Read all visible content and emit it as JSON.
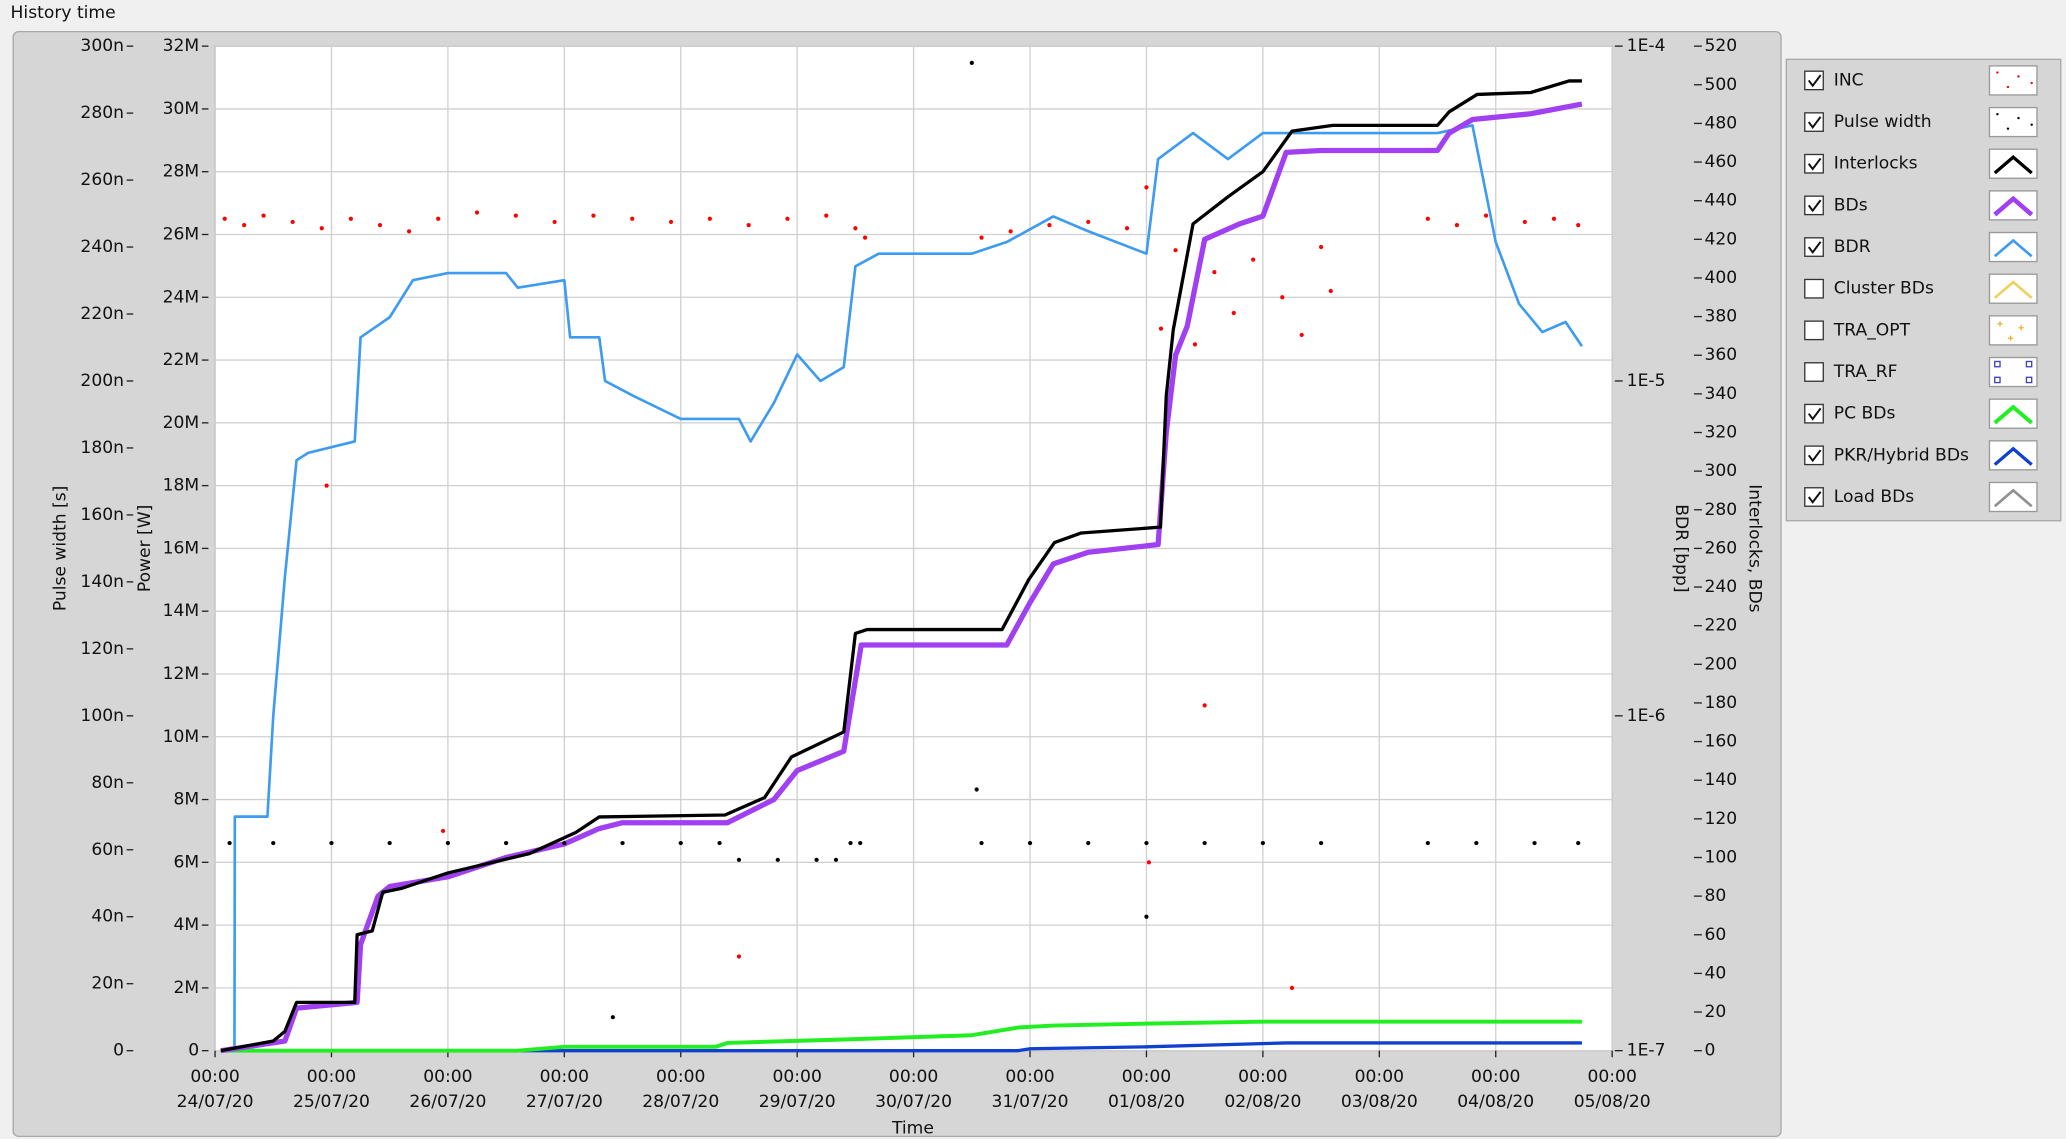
{
  "chart_data": {
    "type": "line",
    "title": "History time",
    "xlabel": "Time",
    "xlim": [
      "24/07/20 00:00",
      "05/08/20 00:00"
    ],
    "xticks": [
      {
        "value": "24/07/20 00:00",
        "label": [
          "00:00",
          "24/07/20"
        ]
      },
      {
        "value": "25/07/20 00:00",
        "label": [
          "00:00",
          "25/07/20"
        ]
      },
      {
        "value": "26/07/20 00:00",
        "label": [
          "00:00",
          "26/07/20"
        ]
      },
      {
        "value": "27/07/20 00:00",
        "label": [
          "00:00",
          "27/07/20"
        ]
      },
      {
        "value": "28/07/20 00:00",
        "label": [
          "00:00",
          "28/07/20"
        ]
      },
      {
        "value": "29/07/20 00:00",
        "label": [
          "00:00",
          "29/07/20"
        ]
      },
      {
        "value": "30/07/20 00:00",
        "label": [
          "00:00",
          "30/07/20"
        ]
      },
      {
        "value": "31/07/20 00:00",
        "label": [
          "00:00",
          "31/07/20"
        ]
      },
      {
        "value": "01/08/20 00:00",
        "label": [
          "00:00",
          "01/08/20"
        ]
      },
      {
        "value": "02/08/20 00:00",
        "label": [
          "00:00",
          "02/08/20"
        ]
      },
      {
        "value": "03/08/20 00:00",
        "label": [
          "00:00",
          "03/08/20"
        ]
      },
      {
        "value": "04/08/20 00:00",
        "label": [
          "00:00",
          "04/08/20"
        ]
      },
      {
        "value": "05/08/20 00:00",
        "label": [
          "00:00",
          "05/08/20"
        ]
      }
    ],
    "ylabel": "Pulse width [s]",
    "ylim": [
      0,
      3e-07
    ],
    "yticks": [
      0,
      {
        "value": 2e-08,
        "label": "20n"
      },
      {
        "value": 4e-08,
        "label": "40n"
      },
      {
        "value": 6e-08,
        "label": "60n"
      },
      {
        "value": 8e-08,
        "label": "80n"
      },
      {
        "value": 1e-07,
        "label": "100n"
      },
      {
        "value": 1.2e-07,
        "label": "120n"
      },
      {
        "value": 1.4e-07,
        "label": "140n"
      },
      {
        "value": 1.6e-07,
        "label": "160n"
      },
      {
        "value": 1.8e-07,
        "label": "180n"
      },
      {
        "value": 2e-07,
        "label": "200n"
      },
      {
        "value": 2.2e-07,
        "label": "220n"
      },
      {
        "value": 2.4e-07,
        "label": "240n"
      },
      {
        "value": 2.6e-07,
        "label": "260n"
      },
      {
        "value": 2.8e-07,
        "label": "280n"
      },
      {
        "value": 3e-07,
        "label": "300n"
      }
    ],
    "y2label": "Power [W]",
    "y2lim": [
      0,
      32000000
    ],
    "y2ticks": [
      0,
      {
        "value": 2000000,
        "label": "2M"
      },
      {
        "value": 4000000,
        "label": "4M"
      },
      {
        "value": 6000000,
        "label": "6M"
      },
      {
        "value": 8000000,
        "label": "8M"
      },
      {
        "value": 10000000,
        "label": "10M"
      },
      {
        "value": 12000000,
        "label": "12M"
      },
      {
        "value": 14000000,
        "label": "14M"
      },
      {
        "value": 16000000,
        "label": "16M"
      },
      {
        "value": 18000000,
        "label": "18M"
      },
      {
        "value": 20000000,
        "label": "20M"
      },
      {
        "value": 22000000,
        "label": "22M"
      },
      {
        "value": 24000000,
        "label": "24M"
      },
      {
        "value": 26000000,
        "label": "26M"
      },
      {
        "value": 28000000,
        "label": "28M"
      },
      {
        "value": 30000000,
        "label": "30M"
      },
      {
        "value": 32000000,
        "label": "32M"
      }
    ],
    "y3label": "BDR [bpp]",
    "y3log": true,
    "y3lim": [
      1e-07,
      0.0001
    ],
    "y3ticks": [
      {
        "value": 1e-07,
        "label": "1E-7"
      },
      {
        "value": 1e-06,
        "label": "1E-6"
      },
      {
        "value": 1e-05,
        "label": "1E-5"
      },
      {
        "value": 0.0001,
        "label": "1E-4"
      }
    ],
    "y4label": "Interlocks, BDs",
    "y4lim": [
      0,
      520
    ],
    "y4ticks": [
      0,
      20,
      40,
      60,
      80,
      100,
      120,
      140,
      160,
      180,
      200,
      220,
      240,
      260,
      280,
      300,
      320,
      340,
      360,
      380,
      400,
      420,
      440,
      460,
      480,
      500,
      520
    ],
    "grid": true,
    "legend": "right",
    "series": [
      {
        "name": "INC",
        "color": "#ff0000",
        "style": "points",
        "marker": "dot",
        "checked": true,
        "axis": "y2",
        "x": [
          "24/07/20 02:00",
          "24/07/20 06:00",
          "24/07/20 10:00",
          "24/07/20 16:00",
          "24/07/20 22:00",
          "25/07/20 04:00",
          "25/07/20 10:00",
          "25/07/20 16:00",
          "25/07/20 22:00",
          "26/07/20 06:00",
          "26/07/20 14:00",
          "26/07/20 22:00",
          "27/07/20 06:00",
          "27/07/20 14:00",
          "27/07/20 22:00",
          "28/07/20 06:00",
          "28/07/20 14:00",
          "28/07/20 22:00",
          "29/07/20 06:00",
          "29/07/20 12:00",
          "29/07/20 14:00",
          "30/07/20 14:00",
          "30/07/20 20:00",
          "31/07/20 04:00",
          "31/07/20 12:00",
          "31/07/20 20:00",
          "01/08/20 00:00",
          "01/08/20 03:00",
          "01/08/20 06:00",
          "01/08/20 10:00",
          "01/08/20 14:00",
          "01/08/20 18:00",
          "01/08/20 22:00",
          "02/08/20 04:00",
          "02/08/20 08:00",
          "02/08/20 12:00",
          "02/08/20 14:00",
          "03/08/20 10:00",
          "03/08/20 16:00",
          "03/08/20 22:00",
          "04/08/20 06:00",
          "04/08/20 12:00",
          "04/08/20 17:00",
          "24/07/20 23:00",
          "25/07/20 23:00",
          "28/07/20 12:00",
          "01/08/20 00:30",
          "02/08/20 06:00",
          "01/08/20 12:00"
        ],
        "values": [
          26500000,
          26300000,
          26600000,
          26400000,
          26200000,
          26500000,
          26300000,
          26100000,
          26500000,
          26700000,
          26600000,
          26400000,
          26600000,
          26500000,
          26400000,
          26500000,
          26300000,
          26500000,
          26600000,
          26200000,
          25900000,
          25900000,
          26100000,
          26300000,
          26400000,
          26200000,
          27500000,
          23000000,
          25500000,
          22500000,
          24800000,
          23500000,
          25200000,
          24000000,
          22800000,
          25600000,
          24200000,
          26500000,
          26300000,
          26600000,
          26400000,
          26500000,
          26300000,
          18000000,
          7000000,
          3000000,
          6000000,
          2000000,
          11000000
        ]
      },
      {
        "name": "Pulse width",
        "color": "#000000",
        "style": "points",
        "marker": "dot",
        "checked": true,
        "axis": "y",
        "x": [
          "24/07/20 03:00",
          "24/07/20 12:00",
          "25/07/20 00:00",
          "25/07/20 12:00",
          "26/07/20 00:00",
          "26/07/20 12:00",
          "27/07/20 00:00",
          "27/07/20 12:00",
          "28/07/20 00:00",
          "28/07/20 08:00",
          "28/07/20 12:00",
          "28/07/20 20:00",
          "29/07/20 04:00",
          "29/07/20 08:00",
          "29/07/20 11:00",
          "29/07/20 13:00",
          "30/07/20 14:00",
          "31/07/20 00:00",
          "31/07/20 12:00",
          "01/08/20 00:00",
          "01/08/20 12:00",
          "02/08/20 00:00",
          "02/08/20 12:00",
          "03/08/20 10:00",
          "03/08/20 20:00",
          "04/08/20 08:00",
          "04/08/20 17:00",
          "30/07/20 12:00",
          "27/07/20 10:00",
          "01/08/20 00:00",
          "30/07/20 13:00"
        ],
        "values": [
          6.2e-08,
          6.2e-08,
          6.2e-08,
          6.2e-08,
          6.2e-08,
          6.2e-08,
          6.2e-08,
          6.2e-08,
          6.2e-08,
          6.2e-08,
          5.7e-08,
          5.7e-08,
          5.7e-08,
          5.7e-08,
          6.2e-08,
          6.2e-08,
          6.2e-08,
          6.2e-08,
          6.2e-08,
          6.2e-08,
          6.2e-08,
          6.2e-08,
          6.2e-08,
          6.2e-08,
          6.2e-08,
          6.2e-08,
          6.2e-08,
          2.95e-07,
          1e-08,
          4e-08,
          7.8e-08
        ]
      },
      {
        "name": "Interlocks",
        "color": "#000000",
        "style": "line",
        "line_width": 2.5,
        "checked": true,
        "axis": "y4",
        "x": [
          "24/07/20 01:12",
          "24/07/20 12:00",
          "24/07/20 14:24",
          "24/07/20 16:48",
          "25/07/20 04:48",
          "25/07/20 05:17",
          "25/07/20 08:24",
          "25/07/20 10:34",
          "25/07/20 14:24",
          "26/07/20 00:00",
          "26/07/20 16:48",
          "27/07/20 02:24",
          "27/07/20 07:12",
          "28/07/20 09:07",
          "28/07/20 17:17",
          "28/07/20 22:48",
          "29/07/20 09:36",
          "29/07/20 12:00",
          "29/07/20 14:24",
          "30/07/20 18:14",
          "30/07/20 23:46",
          "31/07/20 05:02",
          "31/07/20 10:34",
          "01/08/20 02:53",
          "01/08/20 04:05",
          "01/08/20 05:31",
          "01/08/20 09:36",
          "01/08/20 16:48",
          "02/08/20 00:00",
          "02/08/20 06:00",
          "02/08/20 14:24",
          "03/08/20 12:00",
          "03/08/20 14:24",
          "03/08/20 20:10",
          "04/08/20 07:12",
          "04/08/20 15:07",
          "04/08/20 17:46"
        ],
        "values": [
          0,
          5,
          10,
          25,
          25,
          60,
          62,
          82,
          84,
          92,
          102,
          113,
          121,
          122,
          131,
          152,
          165,
          216,
          218,
          218,
          244,
          263,
          268,
          271,
          339,
          373,
          428,
          442,
          455,
          476,
          479,
          479,
          486,
          495,
          496,
          502,
          502
        ]
      },
      {
        "name": "BDs",
        "color": "#a040f0",
        "style": "line",
        "line_width": 4,
        "checked": true,
        "axis": "y4",
        "x": [
          "24/07/20 01:12",
          "24/07/20 14:24",
          "24/07/20 16:48",
          "25/07/20 05:17",
          "25/07/20 06:00",
          "25/07/20 09:36",
          "25/07/20 12:00",
          "26/07/20 00:00",
          "26/07/20 12:00",
          "27/07/20 00:00",
          "27/07/20 07:12",
          "27/07/20 12:00",
          "28/07/20 09:36",
          "28/07/20 19:12",
          "29/07/20 00:00",
          "29/07/20 09:36",
          "29/07/20 13:12",
          "30/07/20 19:12",
          "31/07/20 00:00",
          "31/07/20 04:48",
          "31/07/20 12:00",
          "01/08/20 02:24",
          "01/08/20 04:05",
          "01/08/20 06:00",
          "01/08/20 08:24",
          "01/08/20 12:00",
          "01/08/20 19:12",
          "02/08/20 00:00",
          "02/08/20 04:48",
          "02/08/20 12:00",
          "03/08/20 12:00",
          "03/08/20 14:24",
          "03/08/20 19:12",
          "04/08/20 07:12",
          "04/08/20 17:46"
        ],
        "values": [
          0,
          5,
          22,
          25,
          55,
          80,
          85,
          90,
          100,
          107,
          115,
          118,
          118,
          130,
          145,
          155,
          210,
          210,
          232,
          252,
          258,
          262,
          320,
          360,
          375,
          420,
          428,
          432,
          465,
          466,
          466,
          475,
          482,
          485,
          490
        ]
      },
      {
        "name": "BDR",
        "color": "#3d9bf0",
        "style": "line",
        "line_width": 2,
        "checked": true,
        "axis": "y3",
        "x": [
          "24/07/20 04:00",
          "24/07/20 04:05",
          "24/07/20 10:48",
          "24/07/20 12:00",
          "24/07/20 14:24",
          "24/07/20 16:48",
          "24/07/20 19:12",
          "25/07/20 04:48",
          "25/07/20 06:00",
          "25/07/20 12:00",
          "25/07/20 16:48",
          "26/07/20 00:00",
          "26/07/20 12:00",
          "26/07/20 14:24",
          "27/07/20 00:00",
          "27/07/20 01:12",
          "27/07/20 07:12",
          "27/07/20 08:24",
          "27/07/20 14:24",
          "28/07/20 00:00",
          "28/07/20 12:00",
          "28/07/20 14:24",
          "28/07/20 19:12",
          "29/07/20 00:00",
          "29/07/20 04:48",
          "29/07/20 09:36",
          "29/07/20 12:00",
          "29/07/20 16:48",
          "30/07/20 12:00",
          "30/07/20 19:12",
          "31/07/20 04:48",
          "31/07/20 12:00",
          "01/08/20 00:00",
          "01/08/20 02:24",
          "01/08/20 09:36",
          "01/08/20 16:48",
          "02/08/20 00:00",
          "03/08/20 12:00",
          "03/08/20 19:12",
          "04/08/20 00:00",
          "04/08/20 04:48",
          "04/08/20 09:36",
          "04/08/20 14:24",
          "04/08/20 17:46"
        ],
        "values": [
          1e-07,
          5e-07,
          5e-07,
          1e-06,
          2.6e-06,
          5.8e-06,
          6.1e-06,
          6.6e-06,
          1.35e-05,
          1.55e-05,
          2e-05,
          2.1e-05,
          2.1e-05,
          1.9e-05,
          2e-05,
          1.35e-05,
          1.35e-05,
          1e-05,
          9e-06,
          7.7e-06,
          7.7e-06,
          6.6e-06,
          8.6e-06,
          1.2e-05,
          1e-05,
          1.1e-05,
          2.2e-05,
          2.4e-05,
          2.4e-05,
          2.6e-05,
          3.1e-05,
          2.8e-05,
          2.4e-05,
          4.6e-05,
          5.5e-05,
          4.6e-05,
          5.5e-05,
          5.5e-05,
          5.8e-05,
          2.6e-05,
          1.7e-05,
          1.4e-05,
          1.5e-05,
          1.27e-05
        ]
      },
      {
        "name": "Cluster BDs",
        "color": "#f0d060",
        "style": "line",
        "line_width": 2,
        "checked": false,
        "axis": "y4"
      },
      {
        "name": "TRA_OPT",
        "color": "#f0b030",
        "style": "points",
        "marker": "plus",
        "checked": false,
        "axis": "y2"
      },
      {
        "name": "TRA_RF",
        "color": "#4040c0",
        "style": "points",
        "marker": "square",
        "checked": false,
        "axis": "y2"
      },
      {
        "name": "PC BDs",
        "color": "#22ee22",
        "style": "line",
        "line_width": 3,
        "checked": true,
        "axis": "y4",
        "x": [
          "24/07/20 01:12",
          "26/07/20 14:24",
          "27/07/20 00:00",
          "28/07/20 07:12",
          "28/07/20 09:36",
          "29/07/20 12:00",
          "30/07/20 12:00",
          "30/07/20 21:36",
          "31/07/20 04:48",
          "01/08/20 00:00",
          "02/08/20 00:00",
          "04/08/20 17:46"
        ],
        "values": [
          0,
          0,
          2,
          2,
          4,
          6,
          8,
          12,
          13,
          14,
          15,
          15
        ]
      },
      {
        "name": "PKR/Hybrid BDs",
        "color": "#1040d0",
        "style": "line",
        "line_width": 2.5,
        "checked": true,
        "axis": "y4",
        "x": [
          "24/07/20 01:12",
          "30/07/20 21:36",
          "31/07/20 00:00",
          "01/08/20 00:00",
          "02/08/20 04:48",
          "04/08/20 17:46"
        ],
        "values": [
          0,
          0,
          1,
          2,
          4,
          4
        ]
      },
      {
        "name": "Load BDs",
        "color": "#909090",
        "style": "line",
        "line_width": 2,
        "checked": true,
        "axis": "y4"
      }
    ]
  }
}
